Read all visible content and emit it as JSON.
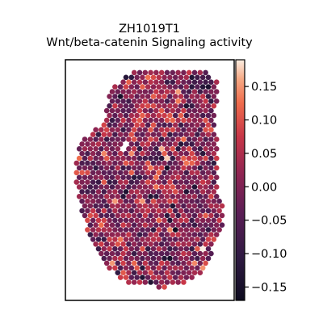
{
  "chart_data": {
    "type": "scatter",
    "title": "ZH1019T1",
    "subtitle": "Wnt/beta-catenin Signaling activity",
    "xlabel": "",
    "ylabel": "",
    "grid": false,
    "colormap": "rocket",
    "colorbar": {
      "vmin": -0.17,
      "vmax": 0.19,
      "ticks": [
        -0.15,
        -0.1,
        -0.05,
        0.0,
        0.05,
        0.1,
        0.15
      ],
      "tick_labels": [
        "−0.15",
        "−0.10",
        "−0.05",
        "0.00",
        "0.05",
        "0.10",
        "0.15"
      ]
    },
    "colors": {
      "low": "#0d0b1f",
      "mid_low": "#4a1f4f",
      "mid": "#8d2452",
      "mid_high": "#d2394a",
      "high": "#f8e6d2"
    },
    "tissue_spots": {
      "shape": "hexagonal spatial spot grid",
      "approx_value_mean": 0.0,
      "approx_value_sd": 0.055
    }
  }
}
